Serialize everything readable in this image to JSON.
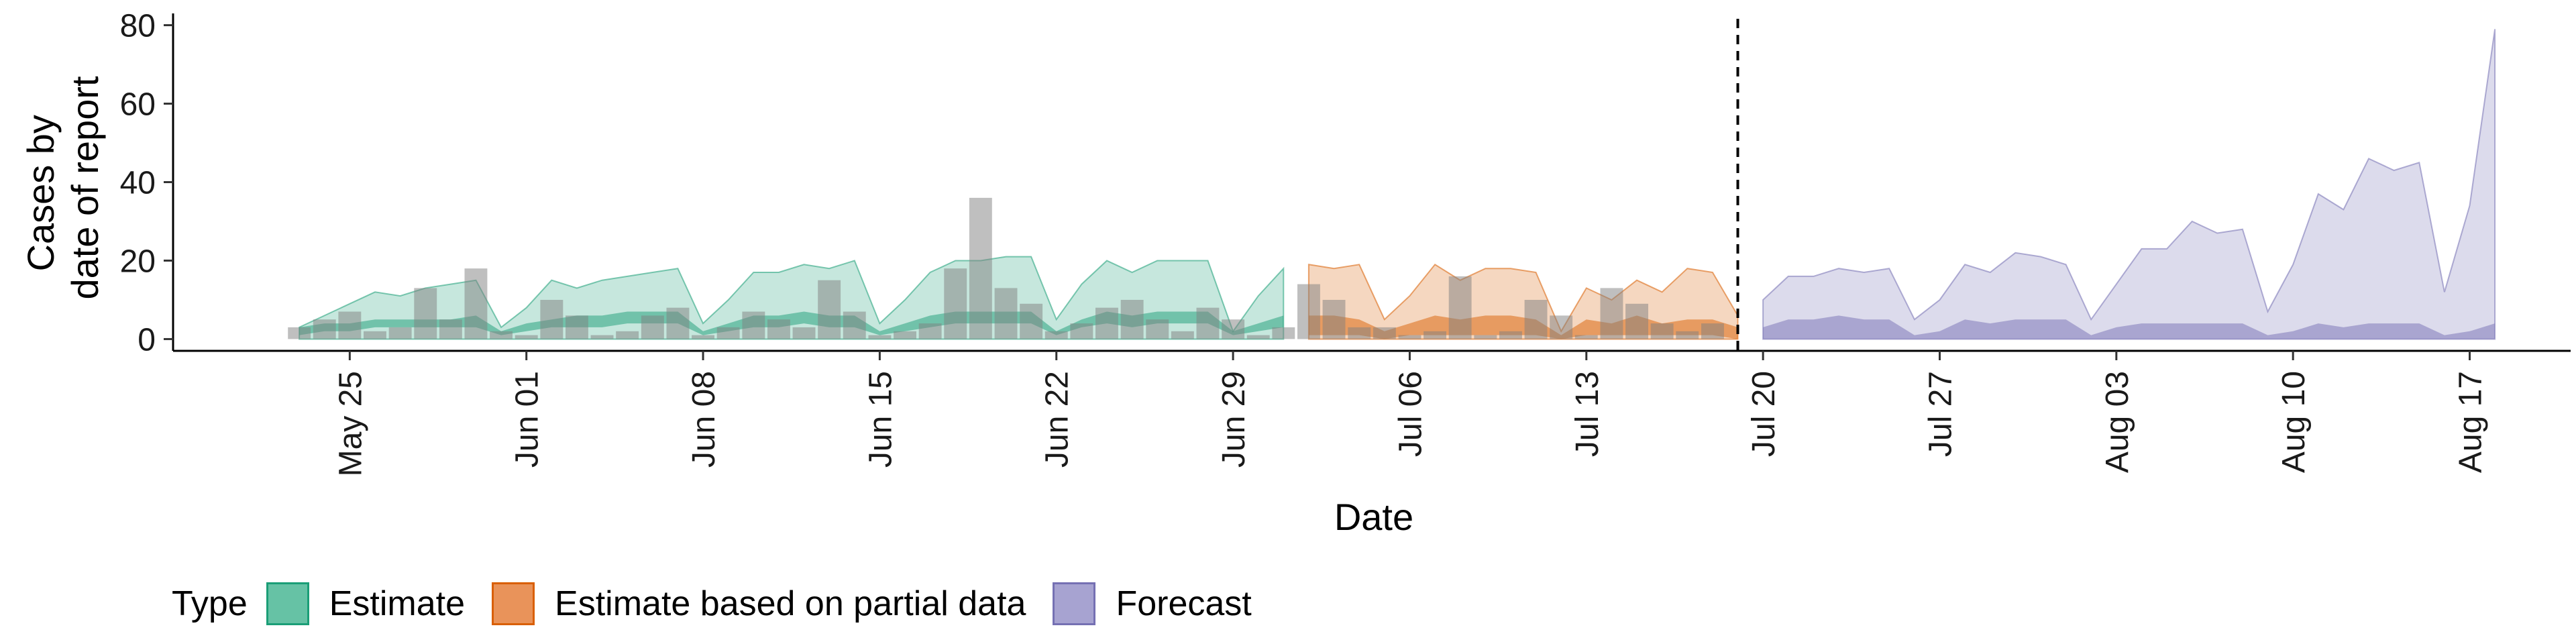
{
  "chart_data": {
    "type": "area",
    "xlabel": "Date",
    "ylabel_lines": [
      "Cases by",
      "date of report"
    ],
    "ylim": [
      -3,
      83
    ],
    "yticks": [
      0,
      20,
      40,
      60,
      80
    ],
    "xlim": [
      "2020-05-18",
      "2020-08-21"
    ],
    "xticks": [
      "2020-05-25",
      "2020-06-01",
      "2020-06-08",
      "2020-06-15",
      "2020-06-22",
      "2020-06-29",
      "2020-07-06",
      "2020-07-13",
      "2020-07-20",
      "2020-07-27",
      "2020-08-03",
      "2020-08-10",
      "2020-08-17"
    ],
    "xtick_labels": [
      "May 25",
      "Jun 01",
      "Jun 08",
      "Jun 15",
      "Jun 22",
      "Jun 29",
      "Jul 06",
      "Jul 13",
      "Jul 20",
      "Jul 27",
      "Aug 03",
      "Aug 10",
      "Aug 17"
    ],
    "forecast_cutoff": "2020-07-19",
    "legend": {
      "title": "Type",
      "items": [
        {
          "label": "Estimate",
          "fill": "#66c2a5",
          "border": "#1b9e77"
        },
        {
          "label": "Estimate based on partial data",
          "fill": "#e9935a",
          "border": "#d95f02"
        },
        {
          "label": "Forecast",
          "fill": "#a7a3d1",
          "border": "#7570b3"
        }
      ]
    },
    "series": [
      {
        "name": "Estimate",
        "outer_color": "#1b9e77",
        "inner_color": "#1b9e77",
        "x": [
          "2020-05-23",
          "2020-05-24",
          "2020-05-25",
          "2020-05-26",
          "2020-05-27",
          "2020-05-28",
          "2020-05-29",
          "2020-05-30",
          "2020-05-31",
          "2020-06-01",
          "2020-06-02",
          "2020-06-03",
          "2020-06-04",
          "2020-06-05",
          "2020-06-06",
          "2020-06-07",
          "2020-06-08",
          "2020-06-09",
          "2020-06-10",
          "2020-06-11",
          "2020-06-12",
          "2020-06-13",
          "2020-06-14",
          "2020-06-15",
          "2020-06-16",
          "2020-06-17",
          "2020-06-18",
          "2020-06-19",
          "2020-06-20",
          "2020-06-21",
          "2020-06-22",
          "2020-06-23",
          "2020-06-24",
          "2020-06-25",
          "2020-06-26",
          "2020-06-27",
          "2020-06-28",
          "2020-06-29",
          "2020-06-30",
          "2020-07-01"
        ],
        "outer_upper": [
          3,
          6,
          9,
          12,
          11,
          13,
          14,
          15,
          3,
          8,
          15,
          13,
          15,
          16,
          17,
          18,
          4,
          10,
          17,
          17,
          19,
          18,
          20,
          4,
          10,
          17,
          20,
          20,
          21,
          21,
          5,
          14,
          20,
          17,
          20,
          20,
          20,
          2,
          11,
          18
        ],
        "inner_lower": [
          1,
          2,
          2,
          3,
          3,
          3,
          3,
          3,
          1,
          2,
          3,
          3,
          3,
          4,
          4,
          4,
          1,
          2,
          3,
          3,
          4,
          3,
          3,
          1,
          2,
          3,
          4,
          4,
          4,
          4,
          1,
          3,
          4,
          3,
          4,
          4,
          4,
          1,
          2,
          3
        ],
        "inner_upper": [
          3,
          4,
          4,
          5,
          5,
          5,
          5,
          6,
          2,
          4,
          5,
          6,
          6,
          7,
          7,
          7,
          2,
          4,
          6,
          6,
          7,
          6,
          6,
          2,
          4,
          6,
          7,
          7,
          7,
          7,
          2,
          5,
          7,
          6,
          7,
          7,
          7,
          2,
          4,
          6
        ]
      },
      {
        "name": "Estimate based on partial data",
        "outer_color": "#d95f02",
        "inner_color": "#d95f02",
        "x": [
          "2020-07-02",
          "2020-07-03",
          "2020-07-04",
          "2020-07-05",
          "2020-07-06",
          "2020-07-07",
          "2020-07-08",
          "2020-07-09",
          "2020-07-10",
          "2020-07-11",
          "2020-07-12",
          "2020-07-13",
          "2020-07-14",
          "2020-07-15",
          "2020-07-16",
          "2020-07-17",
          "2020-07-18",
          "2020-07-19"
        ],
        "outer_upper": [
          19,
          18,
          19,
          5,
          11,
          19,
          15,
          18,
          18,
          17,
          2,
          13,
          10,
          15,
          12,
          18,
          17,
          6
        ],
        "inner_lower": [
          1,
          1,
          1,
          0,
          1,
          1,
          1,
          1,
          1,
          1,
          0,
          1,
          1,
          1,
          1,
          1,
          1,
          0
        ],
        "inner_upper": [
          6,
          6,
          5,
          2,
          4,
          6,
          5,
          6,
          6,
          5,
          1,
          5,
          4,
          6,
          4,
          5,
          5,
          3
        ]
      },
      {
        "name": "Forecast",
        "outer_color": "#7570b3",
        "inner_color": "#7570b3",
        "x": [
          "2020-07-20",
          "2020-07-21",
          "2020-07-22",
          "2020-07-23",
          "2020-07-24",
          "2020-07-25",
          "2020-07-26",
          "2020-07-27",
          "2020-07-28",
          "2020-07-29",
          "2020-07-30",
          "2020-07-31",
          "2020-08-01",
          "2020-08-02",
          "2020-08-03",
          "2020-08-04",
          "2020-08-05",
          "2020-08-06",
          "2020-08-07",
          "2020-08-08",
          "2020-08-09",
          "2020-08-10",
          "2020-08-11",
          "2020-08-12",
          "2020-08-13",
          "2020-08-14",
          "2020-08-15",
          "2020-08-16",
          "2020-08-17",
          "2020-08-18"
        ],
        "outer_upper": [
          10,
          16,
          16,
          18,
          17,
          18,
          5,
          10,
          19,
          17,
          22,
          21,
          19,
          5,
          14,
          23,
          23,
          30,
          27,
          28,
          7,
          19,
          37,
          33,
          46,
          43,
          45,
          12,
          34,
          79
        ],
        "inner_lower": [
          0,
          0,
          0,
          0,
          0,
          0,
          0,
          0,
          0,
          0,
          0,
          0,
          0,
          0,
          0,
          0,
          0,
          0,
          0,
          0,
          0,
          0,
          0,
          0,
          0,
          0,
          0,
          0,
          0,
          0
        ],
        "inner_upper": [
          3,
          5,
          5,
          6,
          5,
          5,
          1,
          2,
          5,
          4,
          5,
          5,
          5,
          1,
          3,
          4,
          4,
          4,
          4,
          4,
          1,
          2,
          4,
          3,
          4,
          4,
          4,
          1,
          2,
          4
        ]
      }
    ],
    "observed_cases": {
      "x": [
        "2020-05-23",
        "2020-05-24",
        "2020-05-25",
        "2020-05-26",
        "2020-05-27",
        "2020-05-28",
        "2020-05-29",
        "2020-05-30",
        "2020-05-31",
        "2020-06-01",
        "2020-06-02",
        "2020-06-03",
        "2020-06-04",
        "2020-06-05",
        "2020-06-06",
        "2020-06-07",
        "2020-06-08",
        "2020-06-09",
        "2020-06-10",
        "2020-06-11",
        "2020-06-12",
        "2020-06-13",
        "2020-06-14",
        "2020-06-15",
        "2020-06-16",
        "2020-06-17",
        "2020-06-18",
        "2020-06-19",
        "2020-06-20",
        "2020-06-21",
        "2020-06-22",
        "2020-06-23",
        "2020-06-24",
        "2020-06-25",
        "2020-06-26",
        "2020-06-27",
        "2020-06-28",
        "2020-06-29",
        "2020-06-30",
        "2020-07-01",
        "2020-07-02",
        "2020-07-03",
        "2020-07-04",
        "2020-07-05",
        "2020-07-06",
        "2020-07-07",
        "2020-07-08",
        "2020-07-09",
        "2020-07-10",
        "2020-07-11",
        "2020-07-12",
        "2020-07-13",
        "2020-07-14",
        "2020-07-15",
        "2020-07-16",
        "2020-07-17",
        "2020-07-18"
      ],
      "values": [
        3,
        5,
        7,
        2,
        3,
        13,
        5,
        18,
        2,
        1,
        10,
        6,
        1,
        2,
        6,
        8,
        1,
        3,
        7,
        5,
        3,
        15,
        7,
        1,
        2,
        4,
        18,
        36,
        13,
        9,
        2,
        4,
        8,
        10,
        5,
        2,
        8,
        5,
        1,
        3,
        14,
        10,
        3,
        3,
        1,
        2,
        16,
        1,
        2,
        10,
        6,
        1,
        13,
        9,
        4,
        2,
        4
      ]
    }
  }
}
